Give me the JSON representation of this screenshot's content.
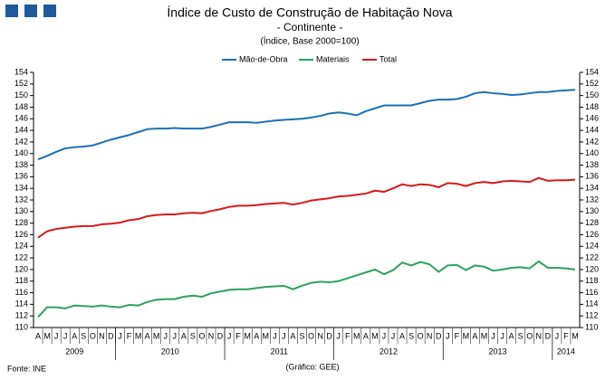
{
  "chart_data": {
    "type": "line",
    "title": "Índice de Custo de Construção de Habitação Nova",
    "subtitle": "- Continente -",
    "note": "(Índice, Base 2000=100)",
    "source": "Fonte: INE",
    "credit": "(Gráfico: GEE)",
    "categories": [
      "A",
      "M",
      "J",
      "J",
      "A",
      "S",
      "O",
      "N",
      "D",
      "J",
      "F",
      "M",
      "A",
      "M",
      "J",
      "J",
      "A",
      "S",
      "O",
      "N",
      "D",
      "J",
      "F",
      "M",
      "A",
      "M",
      "J",
      "J",
      "A",
      "S",
      "O",
      "N",
      "D",
      "J",
      "F",
      "M",
      "A",
      "M",
      "J",
      "J",
      "A",
      "S",
      "O",
      "N",
      "D",
      "J",
      "F",
      "M",
      "A",
      "M",
      "J",
      "J",
      "A",
      "S",
      "O",
      "N",
      "D",
      "J",
      "F",
      "M"
    ],
    "years": [
      "2009",
      "2010",
      "2011",
      "2012",
      "2013",
      "2014"
    ],
    "series": [
      {
        "name": "Mão-de-Obra",
        "color": "#1f6fb4",
        "values": [
          139.0,
          139.6,
          140.3,
          140.9,
          141.1,
          141.2,
          141.4,
          141.9,
          142.4,
          142.8,
          143.2,
          143.7,
          144.2,
          144.3,
          144.3,
          144.4,
          144.3,
          144.3,
          144.3,
          144.6,
          145.0,
          145.4,
          145.4,
          145.4,
          145.3,
          145.5,
          145.7,
          145.8,
          145.9,
          146.0,
          146.2,
          146.5,
          146.9,
          147.1,
          146.9,
          146.6,
          147.3,
          147.8,
          148.3,
          148.3,
          148.3,
          148.3,
          148.7,
          149.1,
          149.3,
          149.3,
          149.4,
          149.8,
          150.4,
          150.6,
          150.4,
          150.3,
          150.1,
          150.2,
          150.4,
          150.6,
          150.6,
          150.8,
          150.9,
          151.0
        ]
      },
      {
        "name": "Materiais",
        "color": "#2ca25f",
        "values": [
          111.8,
          113.5,
          113.5,
          113.3,
          113.8,
          113.7,
          113.6,
          113.8,
          113.6,
          113.5,
          113.9,
          113.8,
          114.4,
          114.8,
          114.9,
          114.9,
          115.3,
          115.5,
          115.3,
          115.9,
          116.2,
          116.5,
          116.6,
          116.6,
          116.8,
          117.0,
          117.1,
          117.2,
          116.6,
          117.2,
          117.7,
          117.9,
          117.8,
          118.0,
          118.5,
          119.0,
          119.5,
          120.0,
          119.2,
          119.9,
          121.2,
          120.7,
          121.3,
          120.9,
          119.6,
          120.7,
          120.8,
          119.9,
          120.7,
          120.5,
          119.8,
          120.0,
          120.3,
          120.4,
          120.2,
          121.4,
          120.3,
          120.3,
          120.2,
          120.0
        ]
      },
      {
        "name": "Total",
        "color": "#d7191c",
        "values": [
          125.5,
          126.6,
          127.0,
          127.2,
          127.4,
          127.5,
          127.5,
          127.8,
          127.9,
          128.1,
          128.5,
          128.7,
          129.2,
          129.4,
          129.5,
          129.5,
          129.7,
          129.8,
          129.7,
          130.1,
          130.4,
          130.8,
          131.0,
          131.0,
          131.1,
          131.3,
          131.4,
          131.5,
          131.2,
          131.5,
          131.9,
          132.1,
          132.3,
          132.6,
          132.7,
          132.9,
          133.1,
          133.6,
          133.4,
          134.0,
          134.7,
          134.4,
          134.7,
          134.6,
          134.2,
          134.9,
          134.8,
          134.4,
          134.9,
          135.1,
          134.9,
          135.2,
          135.3,
          135.2,
          135.1,
          135.8,
          135.3,
          135.4,
          135.4,
          135.5
        ]
      }
    ],
    "ylim": [
      110,
      154
    ],
    "yticks": [
      110,
      112,
      114,
      116,
      118,
      120,
      122,
      124,
      126,
      128,
      130,
      132,
      134,
      136,
      138,
      140,
      142,
      144,
      146,
      148,
      150,
      152,
      154
    ],
    "y2lim": [
      110,
      154
    ],
    "y2ticks": [
      110,
      112,
      114,
      116,
      118,
      120,
      122,
      124,
      126,
      128,
      130,
      132,
      134,
      136,
      138,
      140,
      142,
      144,
      146,
      148,
      150,
      152,
      154
    ],
    "grid": false
  }
}
